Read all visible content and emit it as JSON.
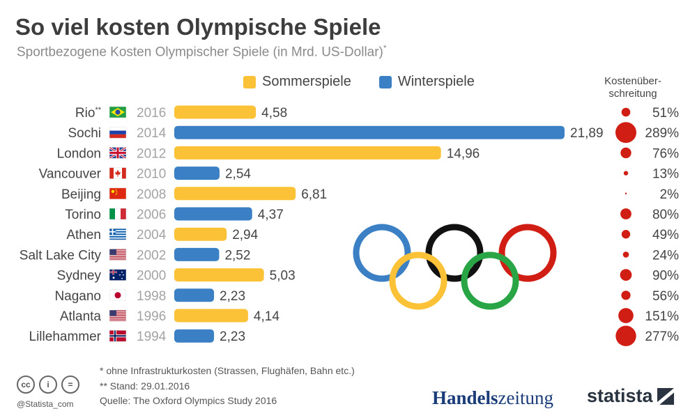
{
  "header": {
    "title": "So viel kosten Olympische Spiele",
    "subtitle": "Sportbezogene Kosten Olympischer Spiele (in Mrd. US-Dollar)",
    "subtitle_mark": "*"
  },
  "legend": {
    "summer": "Sommerspiele",
    "winter": "Winterspiele"
  },
  "overrun_header": [
    "Kostenüber-",
    "schreitung"
  ],
  "colors": {
    "summer": "#fbc237",
    "winter": "#3b80c4",
    "overrun_dot": "#d11e14",
    "rings": [
      "#3b80c4",
      "#fbc237",
      "#111111",
      "#2aa546",
      "#d11e14"
    ]
  },
  "chart_data": {
    "type": "bar",
    "orientation": "horizontal",
    "title": "So viel kosten Olympische Spiele",
    "xlim": [
      0,
      21.89
    ],
    "rows": [
      {
        "city": "Rio",
        "mark": "**",
        "year": "2016",
        "flag": "brazil",
        "season": "summer",
        "value": 4.58,
        "label": "4,58",
        "overrun": 51,
        "overrun_label": "51%"
      },
      {
        "city": "Sochi",
        "mark": "",
        "year": "2014",
        "flag": "russia",
        "season": "winter",
        "value": 21.89,
        "label": "21,89",
        "overrun": 289,
        "overrun_label": "289%"
      },
      {
        "city": "London",
        "mark": "",
        "year": "2012",
        "flag": "uk",
        "season": "summer",
        "value": 14.96,
        "label": "14,96",
        "overrun": 76,
        "overrun_label": "76%"
      },
      {
        "city": "Vancouver",
        "mark": "",
        "year": "2010",
        "flag": "canada",
        "season": "winter",
        "value": 2.54,
        "label": "2,54",
        "overrun": 13,
        "overrun_label": "13%"
      },
      {
        "city": "Beijing",
        "mark": "",
        "year": "2008",
        "flag": "china",
        "season": "summer",
        "value": 6.81,
        "label": "6,81",
        "overrun": 2,
        "overrun_label": "2%"
      },
      {
        "city": "Torino",
        "mark": "",
        "year": "2006",
        "flag": "italy",
        "season": "winter",
        "value": 4.37,
        "label": "4,37",
        "overrun": 80,
        "overrun_label": "80%"
      },
      {
        "city": "Athen",
        "mark": "",
        "year": "2004",
        "flag": "greece",
        "season": "summer",
        "value": 2.94,
        "label": "2,94",
        "overrun": 49,
        "overrun_label": "49%"
      },
      {
        "city": "Salt Lake City",
        "mark": "",
        "year": "2002",
        "flag": "usa",
        "season": "winter",
        "value": 2.52,
        "label": "2,52",
        "overrun": 24,
        "overrun_label": "24%"
      },
      {
        "city": "Sydney",
        "mark": "",
        "year": "2000",
        "flag": "australia",
        "season": "summer",
        "value": 5.03,
        "label": "5,03",
        "overrun": 90,
        "overrun_label": "90%"
      },
      {
        "city": "Nagano",
        "mark": "",
        "year": "1998",
        "flag": "japan",
        "season": "winter",
        "value": 2.23,
        "label": "2,23",
        "overrun": 56,
        "overrun_label": "56%"
      },
      {
        "city": "Atlanta",
        "mark": "",
        "year": "1996",
        "flag": "usa",
        "season": "summer",
        "value": 4.14,
        "label": "4,14",
        "overrun": 151,
        "overrun_label": "151%"
      },
      {
        "city": "Lillehammer",
        "mark": "",
        "year": "1994",
        "flag": "norway",
        "season": "winter",
        "value": 2.23,
        "label": "2,23",
        "overrun": 277,
        "overrun_label": "277%"
      }
    ]
  },
  "footnotes": {
    "note1": "*   ohne Infrastrukturkosten (Strassen, Flughäfen, Bahn etc.)",
    "note2": "** Stand: 29.01.2016",
    "source": "Quelle: The Oxford Olympics Study 2016"
  },
  "footer": {
    "handle": "@Statista_com",
    "cc_icons": [
      "cc",
      "by",
      "nd"
    ],
    "cc_glyphs": [
      "cc",
      "i",
      "="
    ],
    "brand_hz_bold": "Handels",
    "brand_hz_rest": "zeitung",
    "brand_statista": "statista"
  }
}
